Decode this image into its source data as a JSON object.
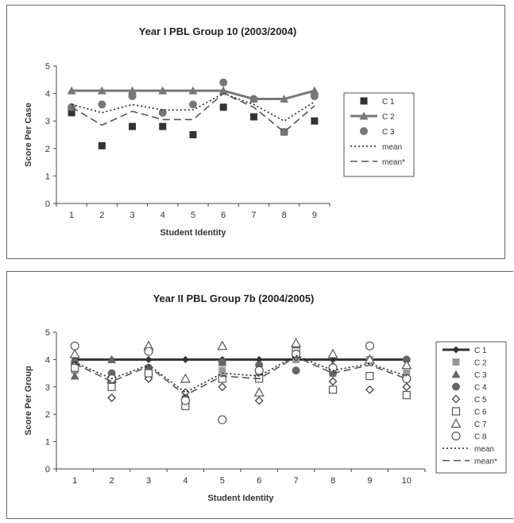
{
  "chart_data": [
    {
      "type": "line",
      "title": "Year I PBL Group 10 (2003/2004)",
      "xlabel": "Student Identity",
      "ylabel": "Score Per Case",
      "categories": [
        "1",
        "2",
        "3",
        "4",
        "5",
        "6",
        "7",
        "8",
        "9"
      ],
      "yticks": [
        "0",
        "1",
        "2",
        "3",
        "4",
        "5"
      ],
      "ylim": [
        0,
        5
      ],
      "legend_position": "right",
      "series": [
        {
          "name": "C 1",
          "marker": "square",
          "line": "none",
          "color": "#333333",
          "values": [
            3.3,
            2.1,
            2.8,
            2.8,
            2.5,
            3.5,
            3.15,
            2.6,
            3.0
          ]
        },
        {
          "name": "C 2",
          "marker": "triangle",
          "line": "solid",
          "color": "#777777",
          "values": [
            4.1,
            4.1,
            4.1,
            4.1,
            4.1,
            4.1,
            3.8,
            3.8,
            4.1
          ]
        },
        {
          "name": "C 3",
          "marker": "circle",
          "line": "none",
          "color": "#777777",
          "values": [
            3.5,
            3.6,
            3.9,
            3.3,
            3.6,
            4.4,
            3.8,
            2.6,
            3.9
          ]
        },
        {
          "name": "mean",
          "marker": "none",
          "line": "dotted",
          "color": "#222222",
          "values": [
            3.6,
            3.3,
            3.6,
            3.4,
            3.4,
            4.0,
            3.6,
            3.0,
            3.7
          ]
        },
        {
          "name": "mean*",
          "marker": "none",
          "line": "dashed",
          "color": "#555555",
          "values": [
            3.5,
            2.85,
            3.35,
            3.05,
            3.05,
            4.0,
            3.5,
            2.6,
            3.55
          ]
        }
      ]
    },
    {
      "type": "line",
      "title": "Year II PBL Group 7b (2004/2005)",
      "xlabel": "Student Identity",
      "ylabel": "Score Per Group",
      "categories": [
        "1",
        "2",
        "3",
        "4",
        "5",
        "6",
        "7",
        "8",
        "9",
        "10"
      ],
      "yticks": [
        "0",
        "1",
        "2",
        "3",
        "4",
        "5"
      ],
      "ylim": [
        0,
        5
      ],
      "legend_position": "right",
      "series": [
        {
          "name": "C 1",
          "marker": "diamond",
          "line": "solid",
          "color": "#333333",
          "values": [
            4.0,
            4.0,
            4.0,
            4.0,
            4.0,
            4.0,
            4.0,
            4.0,
            4.0,
            4.0
          ]
        },
        {
          "name": "C 2",
          "marker": "square",
          "line": "none",
          "color": "#999999",
          "values": [
            3.6,
            3.2,
            3.6,
            2.5,
            3.6,
            3.5,
            4.0,
            3.5,
            4.0,
            3.5
          ]
        },
        {
          "name": "C 3",
          "marker": "triangle",
          "line": "none",
          "color": "#666666",
          "values": [
            3.4,
            4.0,
            3.6,
            2.6,
            3.9,
            2.8,
            4.2,
            3.8,
            4.0,
            3.8
          ]
        },
        {
          "name": "C 4",
          "marker": "circle",
          "line": "none",
          "color": "#666666",
          "values": [
            3.9,
            3.5,
            3.7,
            2.6,
            3.9,
            3.8,
            3.6,
            3.5,
            4.5,
            4.0
          ]
        },
        {
          "name": "C 5",
          "marker": "diamond-open",
          "line": "none",
          "color": "#333333",
          "values": [
            3.8,
            2.6,
            3.3,
            2.8,
            3.0,
            2.5,
            4.1,
            3.2,
            2.9,
            3.0
          ]
        },
        {
          "name": "C 6",
          "marker": "square-open",
          "line": "none",
          "color": "#555555",
          "values": [
            3.7,
            3.0,
            3.5,
            2.3,
            3.3,
            3.3,
            4.3,
            2.9,
            3.4,
            2.7
          ]
        },
        {
          "name": "C 7",
          "marker": "triangle-open",
          "line": "none",
          "color": "#555555",
          "values": [
            4.2,
            3.3,
            4.5,
            3.3,
            4.5,
            2.8,
            4.6,
            4.2,
            4.0,
            3.8
          ]
        },
        {
          "name": "C 8",
          "marker": "circle-open",
          "line": "none",
          "color": "#555555",
          "values": [
            4.5,
            3.3,
            4.3,
            2.5,
            1.8,
            3.6,
            4.2,
            3.7,
            4.5,
            3.3
          ]
        },
        {
          "name": "mean",
          "marker": "none",
          "line": "dotted",
          "color": "#222222",
          "values": [
            3.9,
            3.3,
            3.8,
            2.8,
            3.5,
            3.4,
            4.15,
            3.6,
            3.85,
            3.4
          ]
        },
        {
          "name": "mean*",
          "marker": "none",
          "line": "dashed",
          "color": "#555555",
          "values": [
            3.85,
            3.2,
            3.75,
            2.7,
            3.4,
            3.3,
            4.1,
            3.5,
            3.8,
            3.3
          ]
        }
      ]
    }
  ]
}
